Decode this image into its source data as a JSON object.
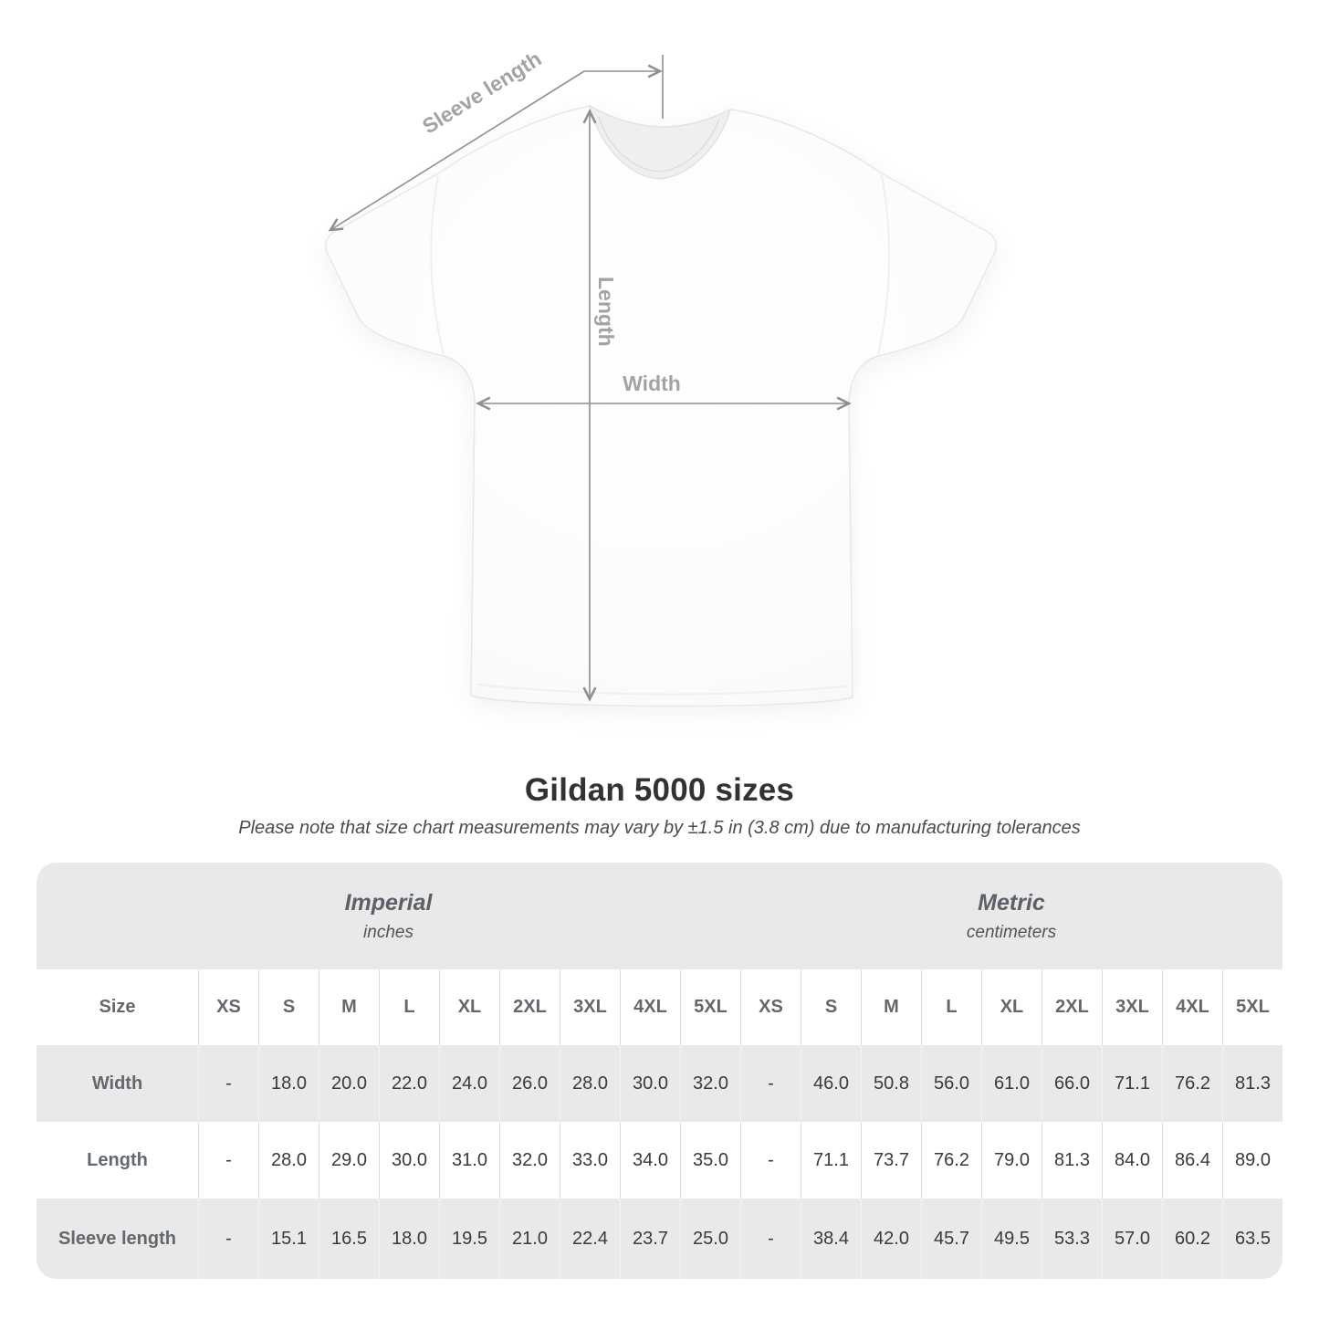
{
  "diagram": {
    "labels": {
      "sleeve_length": "Sleeve length",
      "length": "Length",
      "width": "Width"
    }
  },
  "title": "Gildan 5000 sizes",
  "subtitle": "Please note that size chart measurements may vary by ±1.5 in (3.8 cm) due to manufacturing tolerances",
  "table": {
    "sections": [
      {
        "name": "Imperial",
        "unit": "inches"
      },
      {
        "name": "Metric",
        "unit": "centimeters"
      }
    ],
    "size_header_label": "Size",
    "sizes": [
      "XS",
      "S",
      "M",
      "L",
      "XL",
      "2XL",
      "3XL",
      "4XL",
      "5XL"
    ],
    "rows": [
      {
        "label": "Width",
        "imperial": [
          "-",
          "18.0",
          "20.0",
          "22.0",
          "24.0",
          "26.0",
          "28.0",
          "30.0",
          "32.0"
        ],
        "metric": [
          "-",
          "46.0",
          "50.8",
          "56.0",
          "61.0",
          "66.0",
          "71.1",
          "76.2",
          "81.3"
        ]
      },
      {
        "label": "Length",
        "imperial": [
          "-",
          "28.0",
          "29.0",
          "30.0",
          "31.0",
          "32.0",
          "33.0",
          "34.0",
          "35.0"
        ],
        "metric": [
          "-",
          "71.1",
          "73.7",
          "76.2",
          "79.0",
          "81.3",
          "84.0",
          "86.4",
          "89.0"
        ]
      },
      {
        "label": "Sleeve length",
        "imperial": [
          "-",
          "15.1",
          "16.5",
          "18.0",
          "19.5",
          "21.0",
          "22.4",
          "23.7",
          "25.0"
        ],
        "metric": [
          "-",
          "38.4",
          "42.0",
          "45.7",
          "49.5",
          "53.3",
          "57.0",
          "60.2",
          "63.5"
        ]
      }
    ]
  },
  "colors": {
    "band_gray": "#e9e9e9",
    "row_gray": "#e9e9e9",
    "separator": "#dcdcdc",
    "heading_text": "#323232",
    "label_text": "#62686e",
    "value_text": "#3a3a3a",
    "arrow_gray": "#8f8f8f",
    "diagram_label_gray": "#a3a3a3"
  }
}
